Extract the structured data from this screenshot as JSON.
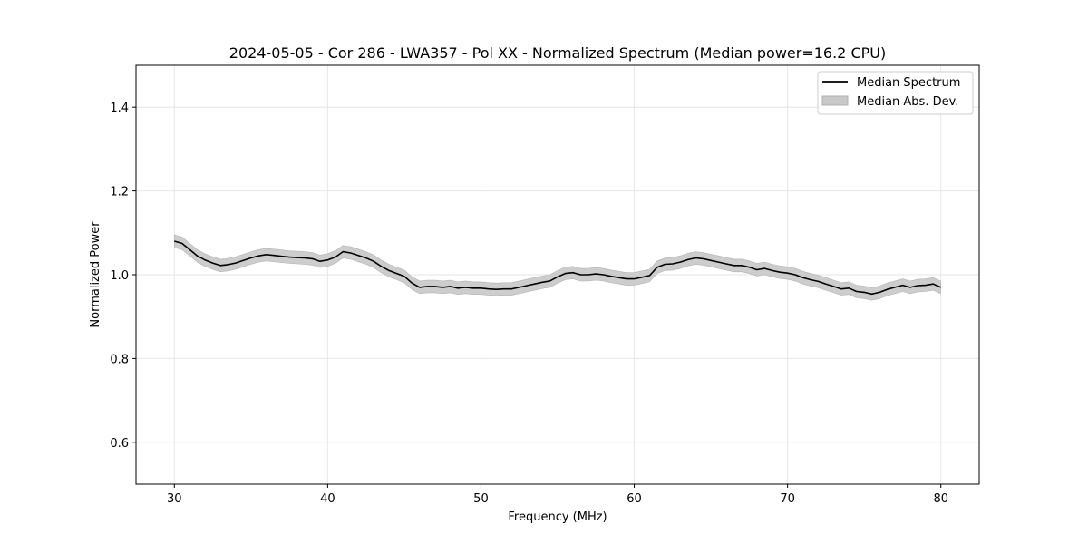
{
  "chart_data": {
    "type": "line",
    "title": "2024-05-05 - Cor 286 - LWA357 - Pol XX - Normalized Spectrum (Median power=16.2 CPU)",
    "xlabel": "Frequency (MHz)",
    "ylabel": "Normalized Power",
    "xlim": [
      27.5,
      82.5
    ],
    "ylim": [
      0.5,
      1.5
    ],
    "xticks": [
      30,
      40,
      50,
      60,
      70,
      80
    ],
    "yticks": [
      0.6,
      0.8,
      1.0,
      1.2,
      1.4
    ],
    "xtick_labels": [
      "30",
      "40",
      "50",
      "60",
      "70",
      "80"
    ],
    "ytick_labels": [
      "0.6",
      "0.8",
      "1.0",
      "1.2",
      "1.4"
    ],
    "grid": true,
    "legend": {
      "position": "top-right",
      "entries": [
        "Median Spectrum",
        "Median Abs. Dev."
      ]
    },
    "series": [
      {
        "name": "Median Spectrum",
        "color": "#000000",
        "x": [
          30,
          30.5,
          31,
          31.5,
          32,
          32.5,
          33,
          33.5,
          34,
          34.5,
          35,
          35.5,
          36,
          36.5,
          37,
          37.5,
          38,
          38.5,
          39,
          39.5,
          40,
          40.5,
          41,
          41.5,
          42,
          42.5,
          43,
          43.5,
          44,
          44.5,
          45,
          45.5,
          46,
          46.5,
          47,
          47.5,
          48,
          48.5,
          49,
          49.5,
          50,
          50.5,
          51,
          51.5,
          52,
          52.5,
          53,
          53.5,
          54,
          54.5,
          55,
          55.5,
          56,
          56.5,
          57,
          57.5,
          58,
          58.5,
          59,
          59.5,
          60,
          60.5,
          61,
          61.5,
          62,
          62.5,
          63,
          63.5,
          64,
          64.5,
          65,
          65.5,
          66,
          66.5,
          67,
          67.5,
          68,
          68.5,
          69,
          69.5,
          70,
          70.5,
          71,
          71.5,
          72,
          72.5,
          73,
          73.5,
          74,
          74.5,
          75,
          75.5,
          76,
          76.5,
          77,
          77.5,
          78,
          78.5,
          79,
          79.5,
          80
        ],
        "y": [
          1.08,
          1.075,
          1.06,
          1.045,
          1.035,
          1.028,
          1.022,
          1.024,
          1.028,
          1.034,
          1.04,
          1.045,
          1.048,
          1.046,
          1.044,
          1.042,
          1.041,
          1.04,
          1.038,
          1.032,
          1.035,
          1.042,
          1.055,
          1.052,
          1.046,
          1.04,
          1.032,
          1.02,
          1.01,
          1.003,
          0.996,
          0.98,
          0.97,
          0.972,
          0.972,
          0.97,
          0.972,
          0.968,
          0.97,
          0.968,
          0.968,
          0.966,
          0.965,
          0.966,
          0.966,
          0.97,
          0.974,
          0.978,
          0.982,
          0.985,
          0.995,
          1.003,
          1.005,
          1.0,
          1.0,
          1.002,
          1.0,
          0.996,
          0.993,
          0.99,
          0.99,
          0.994,
          0.998,
          1.018,
          1.025,
          1.026,
          1.03,
          1.036,
          1.04,
          1.038,
          1.034,
          1.03,
          1.026,
          1.022,
          1.022,
          1.018,
          1.012,
          1.015,
          1.01,
          1.006,
          1.004,
          1.0,
          0.993,
          0.988,
          0.984,
          0.978,
          0.972,
          0.966,
          0.968,
          0.96,
          0.958,
          0.954,
          0.958,
          0.965,
          0.97,
          0.975,
          0.97,
          0.974,
          0.975,
          0.978,
          0.97
        ]
      },
      {
        "name": "Median Abs. Dev.",
        "color": "#c8c8c8",
        "half_width": 0.015
      }
    ]
  }
}
